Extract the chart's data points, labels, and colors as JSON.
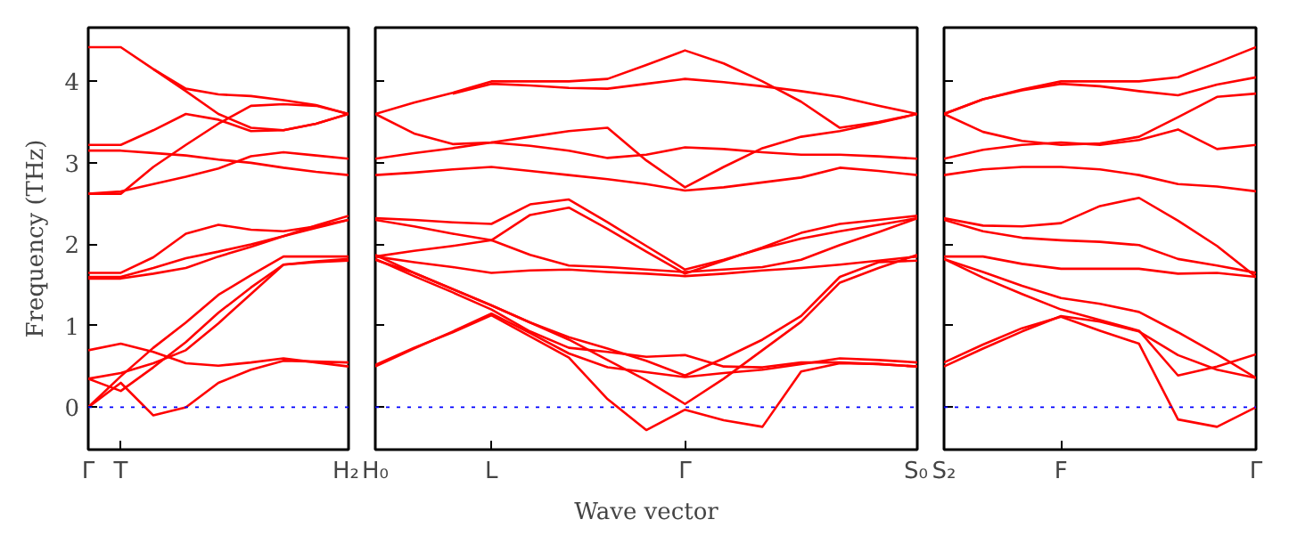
{
  "chart_data": [
    {
      "type": "line",
      "ylabel": "Frequency (THz)",
      "categories": [
        "Γ",
        "T",
        null,
        null,
        null,
        null,
        null,
        null,
        "H₂"
      ],
      "ylim": [
        -0.52,
        4.66
      ],
      "yticks": [
        0,
        1,
        2,
        3,
        4
      ],
      "grid": false,
      "ref_lines": [
        {
          "axis": "y",
          "value": 0,
          "label": null,
          "color": "#0000ff",
          "line_style": "dotted"
        }
      ],
      "series": [
        {
          "color": "#ff0000",
          "values": [
            4.42,
            4.42,
            4.15,
            3.91,
            3.84,
            3.82,
            3.77,
            3.71,
            3.6
          ]
        },
        {
          "color": "#ff0000",
          "values": [
            null,
            null,
            4.15,
            3.88,
            3.6,
            3.43,
            3.4,
            3.48,
            3.6
          ]
        },
        {
          "color": "#ff0000",
          "values": [
            3.22,
            3.22,
            3.4,
            3.6,
            3.53,
            3.39,
            3.4,
            3.48,
            3.6
          ]
        },
        {
          "color": "#ff0000",
          "values": [
            3.15,
            3.15,
            3.12,
            3.09,
            3.04,
            3.0,
            2.94,
            2.89,
            2.85
          ]
        },
        {
          "color": "#ff0000",
          "values": [
            2.62,
            2.62,
            2.95,
            3.22,
            3.48,
            3.7,
            3.72,
            3.7,
            3.6
          ]
        },
        {
          "color": "#ff0000",
          "values": [
            2.62,
            2.65,
            2.74,
            2.83,
            2.93,
            3.08,
            3.13,
            3.09,
            3.05
          ]
        },
        {
          "color": "#ff0000",
          "values": [
            1.65,
            1.65,
            1.84,
            2.13,
            2.24,
            2.18,
            2.16,
            2.22,
            2.3
          ]
        },
        {
          "color": "#ff0000",
          "values": [
            1.6,
            1.6,
            1.71,
            1.83,
            1.91,
            2.0,
            2.1,
            2.23,
            2.35
          ]
        },
        {
          "color": "#ff0000",
          "values": [
            1.58,
            1.58,
            1.64,
            1.71,
            1.85,
            1.97,
            2.1,
            2.2,
            2.3
          ]
        },
        {
          "color": "#ff0000",
          "values": [
            0.7,
            0.78,
            0.68,
            0.54,
            0.51,
            0.55,
            0.6,
            0.55,
            0.5
          ]
        },
        {
          "color": "#ff0000",
          "values": [
            0,
            0.38,
            0.73,
            1.04,
            1.38,
            1.62,
            1.85,
            1.85,
            1.85
          ]
        },
        {
          "color": "#ff0000",
          "values": [
            0.35,
            0.2,
            0.49,
            0.8,
            1.16,
            1.47,
            1.75,
            1.78,
            1.8
          ]
        },
        {
          "color": "#ff0000",
          "values": [
            0,
            0.3,
            -0.1,
            0,
            0.3,
            0.46,
            0.57,
            0.56,
            0.55
          ]
        },
        {
          "color": "#ff0000",
          "values": [
            0.35,
            0.42,
            0.54,
            0.7,
            1.03,
            1.39,
            1.75,
            1.79,
            1.82
          ]
        }
      ]
    },
    {
      "type": "line",
      "xlabel": "Wave vector",
      "categories": [
        "H₀",
        null,
        null,
        "L",
        null,
        null,
        null,
        null,
        "Γ",
        null,
        null,
        null,
        null,
        null,
        "S₀"
      ],
      "ylim": [
        -0.52,
        4.66
      ],
      "yticks": [
        {
          "value": 0,
          "label": null
        },
        {
          "value": 1,
          "label": null
        },
        {
          "value": 2,
          "label": null
        },
        {
          "value": 3,
          "label": null
        },
        {
          "value": 4,
          "label": null
        }
      ],
      "tick_labels": "x",
      "grid": false,
      "ref_lines": [
        {
          "axis": "y",
          "value": 0,
          "label": null,
          "color": "#0000ff",
          "line_style": "dotted"
        }
      ],
      "series": [
        {
          "color": "#ff0000",
          "values": [
            3.6,
            3.74,
            3.86,
            4.0,
            4.0,
            4.0,
            4.03,
            4.2,
            4.38,
            4.22,
            4.0,
            3.75,
            3.43,
            3.5,
            3.6
          ]
        },
        {
          "color": "#ff0000",
          "values": [
            null,
            null,
            3.85,
            3.97,
            3.95,
            3.92,
            3.91,
            3.97,
            4.03,
            3.99,
            3.94,
            3.88,
            3.81,
            3.7,
            3.6
          ]
        },
        {
          "color": "#ff0000",
          "values": [
            3.6,
            3.36,
            3.23,
            3.25,
            3.32,
            3.39,
            3.43,
            3.03,
            2.7,
            2.95,
            3.18,
            3.32,
            3.39,
            3.49,
            3.6
          ]
        },
        {
          "color": "#ff0000",
          "values": [
            3.05,
            3.12,
            3.18,
            3.25,
            3.21,
            3.15,
            3.06,
            3.1,
            3.19,
            3.17,
            3.13,
            3.1,
            3.1,
            3.08,
            3.05
          ]
        },
        {
          "color": "#ff0000",
          "values": [
            2.85,
            2.88,
            2.92,
            2.95,
            2.9,
            2.85,
            2.8,
            2.74,
            2.66,
            2.7,
            2.76,
            2.82,
            2.94,
            2.9,
            2.85
          ]
        },
        {
          "color": "#ff0000",
          "values": [
            2.32,
            2.3,
            2.27,
            2.25,
            2.49,
            2.55,
            2.27,
            1.98,
            1.69,
            1.81,
            1.95,
            2.07,
            2.16,
            2.24,
            2.32
          ]
        },
        {
          "color": "#ff0000",
          "values": [
            2.3,
            2.22,
            2.13,
            2.05,
            2.36,
            2.45,
            2.19,
            1.91,
            1.64,
            1.8,
            1.96,
            2.14,
            2.25,
            2.3,
            2.35
          ]
        },
        {
          "color": "#ff0000",
          "values": [
            1.85,
            1.92,
            1.98,
            2.05,
            1.87,
            1.74,
            1.72,
            1.69,
            1.66,
            1.69,
            1.72,
            1.81,
            1.99,
            2.15,
            2.32
          ]
        },
        {
          "color": "#ff0000",
          "values": [
            1.85,
            1.78,
            1.72,
            1.65,
            1.68,
            1.69,
            1.66,
            1.64,
            1.61,
            1.64,
            1.68,
            1.71,
            1.75,
            1.8,
            1.85
          ]
        },
        {
          "color": "#ff0000",
          "values": [
            0.5,
            0.72,
            0.93,
            1.15,
            0.91,
            0.66,
            0.49,
            0.43,
            0.37,
            0.42,
            0.46,
            0.53,
            0.6,
            0.58,
            0.55
          ]
        },
        {
          "color": "#ff0000",
          "values": [
            1.87,
            1.65,
            1.45,
            1.25,
            1.04,
            0.83,
            0.58,
            0.33,
            0.04,
            0.35,
            0.7,
            1.05,
            1.53,
            1.71,
            1.87
          ]
        },
        {
          "color": "#ff0000",
          "values": [
            1.81,
            1.65,
            1.45,
            1.25,
            1.04,
            0.86,
            0.72,
            0.57,
            0.39,
            0.6,
            0.83,
            1.12,
            1.6,
            1.78,
            1.8
          ]
        },
        {
          "color": "#ff0000",
          "values": [
            1.82,
            1.61,
            1.41,
            1.2,
            0.93,
            0.73,
            0.68,
            0.62,
            0.64,
            0.5,
            0.49,
            0.55,
            0.55,
            0.53,
            0.5
          ]
        },
        {
          "color": "#ff0000",
          "values": [
            0.52,
            0.73,
            0.92,
            1.13,
            0.87,
            0.61,
            0.1,
            -0.28,
            -0.03,
            -0.16,
            -0.24,
            0.44,
            0.54,
            0.53,
            0.5
          ]
        }
      ]
    },
    {
      "type": "line",
      "categories": [
        "S₂",
        null,
        null,
        "F",
        null,
        null,
        null,
        null,
        "Γ"
      ],
      "ylim": [
        -0.52,
        4.66
      ],
      "yticks": [
        {
          "value": 0,
          "label": null
        },
        {
          "value": 1,
          "label": null
        },
        {
          "value": 2,
          "label": null
        },
        {
          "value": 3,
          "label": null
        },
        {
          "value": 4,
          "label": null
        }
      ],
      "tick_labels": "x",
      "grid": false,
      "ref_lines": [
        {
          "axis": "y",
          "value": 0,
          "label": null,
          "color": "#0000ff",
          "line_style": "dotted"
        }
      ],
      "series": [
        {
          "color": "#ff0000",
          "values": [
            3.6,
            3.78,
            3.9,
            4.0,
            4.0,
            4.0,
            4.05,
            4.23,
            4.42
          ]
        },
        {
          "color": "#ff0000",
          "values": [
            3.6,
            3.78,
            3.89,
            3.97,
            3.94,
            3.88,
            3.83,
            3.96,
            4.05
          ]
        },
        {
          "color": "#ff0000",
          "values": [
            3.6,
            3.38,
            3.27,
            3.22,
            3.24,
            3.32,
            3.56,
            3.81,
            3.85
          ]
        },
        {
          "color": "#ff0000",
          "values": [
            3.05,
            3.16,
            3.22,
            3.25,
            3.22,
            3.28,
            3.41,
            3.17,
            3.22
          ]
        },
        {
          "color": "#ff0000",
          "values": [
            2.85,
            2.92,
            2.95,
            2.95,
            2.92,
            2.85,
            2.74,
            2.71,
            2.65
          ]
        },
        {
          "color": "#ff0000",
          "values": [
            2.32,
            2.23,
            2.22,
            2.26,
            2.47,
            2.57,
            2.29,
            1.98,
            1.6
          ]
        },
        {
          "color": "#ff0000",
          "values": [
            2.3,
            2.16,
            2.08,
            2.05,
            2.03,
            1.99,
            1.82,
            1.74,
            1.65
          ]
        },
        {
          "color": "#ff0000",
          "values": [
            1.85,
            1.85,
            1.76,
            1.7,
            1.7,
            1.7,
            1.64,
            1.65,
            1.6
          ]
        },
        {
          "color": "#ff0000",
          "values": [
            1.82,
            1.66,
            1.49,
            1.34,
            1.27,
            1.17,
            0.92,
            0.65,
            0.36
          ]
        },
        {
          "color": "#ff0000",
          "values": [
            0.5,
            0.72,
            0.93,
            1.12,
            1.05,
            0.93,
            0.64,
            0.46,
            0.36
          ]
        },
        {
          "color": "#ff0000",
          "values": [
            1.82,
            1.59,
            1.39,
            1.2,
            1.07,
            0.94,
            0.39,
            0.5,
            0.65
          ]
        },
        {
          "color": "#ff0000",
          "values": [
            0.55,
            0.77,
            0.97,
            1.11,
            0.94,
            0.78,
            -0.15,
            -0.24,
            0
          ]
        }
      ]
    }
  ]
}
